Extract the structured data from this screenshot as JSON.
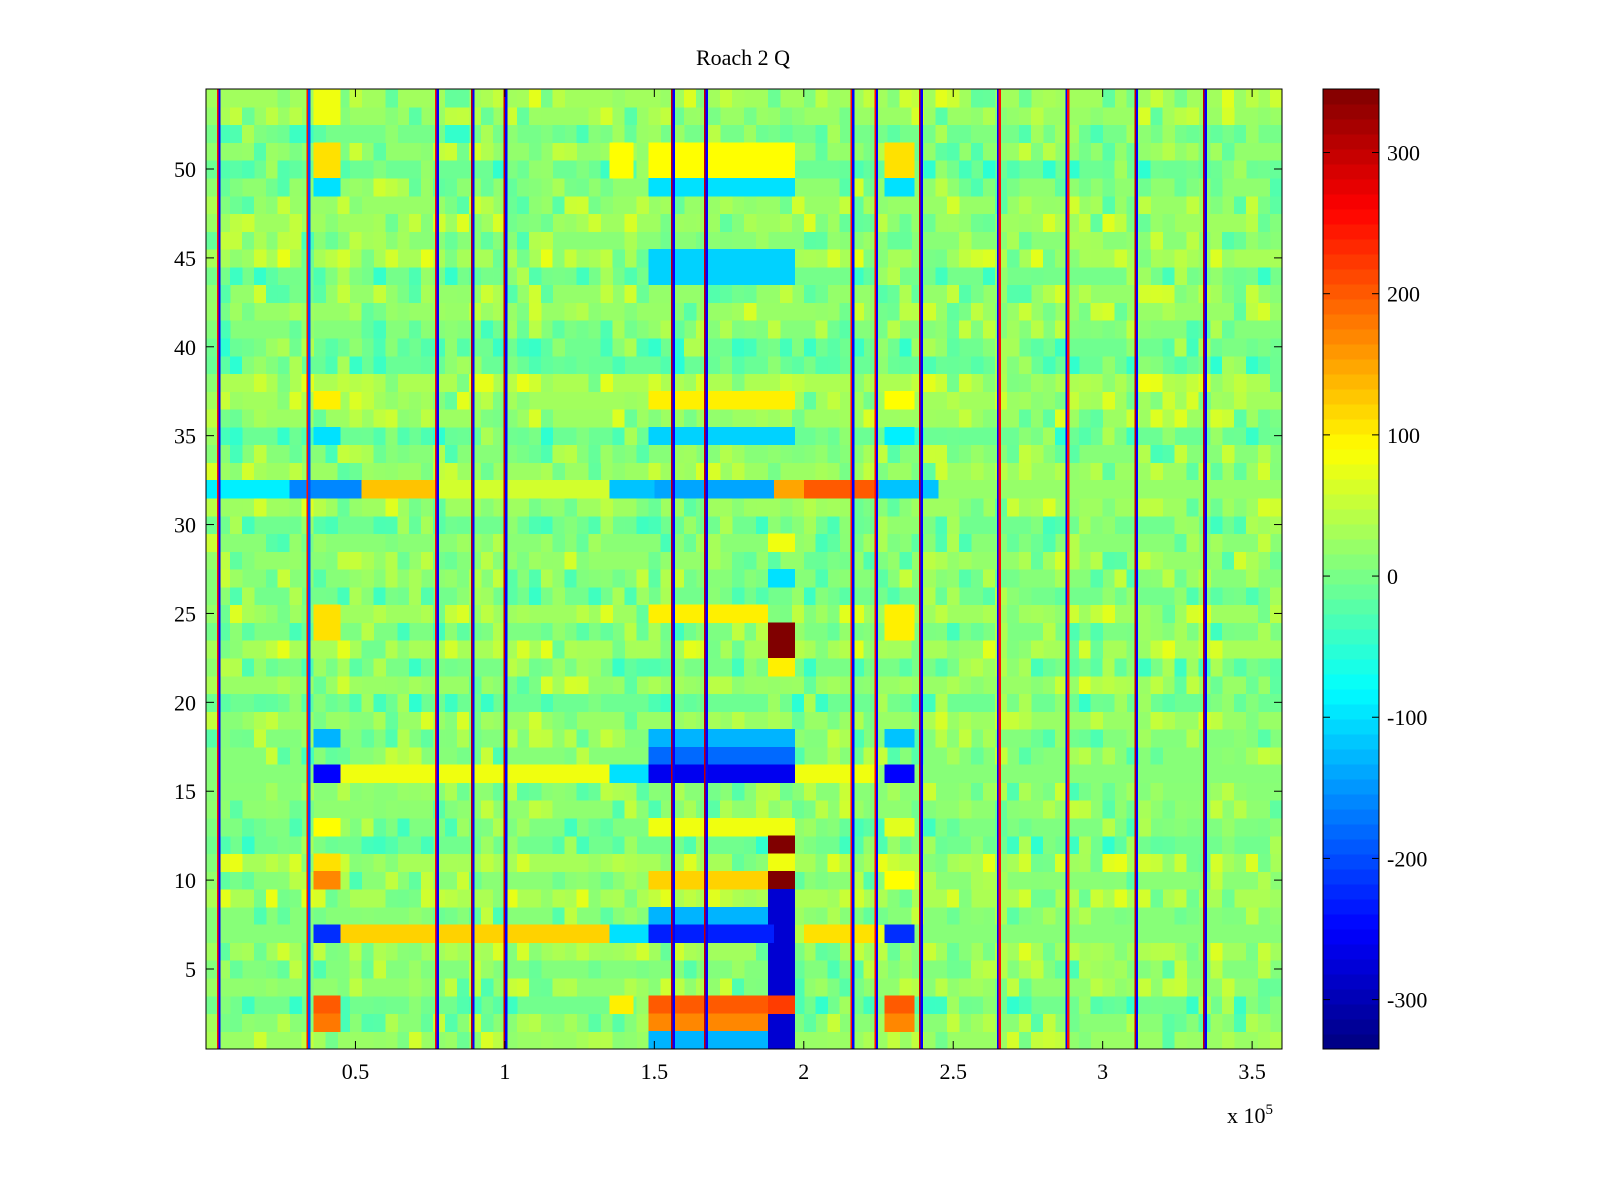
{
  "chart_data": {
    "type": "heatmap",
    "title": "Roach 2 Q",
    "xlabel": "",
    "ylabel": "",
    "x_exponent_label": "x 10",
    "x_exponent": "5",
    "xlim": [
      0,
      3.6
    ],
    "ylim": [
      0.5,
      54.5
    ],
    "x_ticks": [
      0.5,
      1,
      1.5,
      2,
      2.5,
      3,
      3.5
    ],
    "x_tick_labels": [
      "0.5",
      "1",
      "1.5",
      "2",
      "2.5",
      "3",
      "3.5"
    ],
    "y_ticks": [
      5,
      10,
      15,
      20,
      25,
      30,
      35,
      40,
      45,
      50
    ],
    "y_tick_labels": [
      "5",
      "10",
      "15",
      "20",
      "25",
      "30",
      "35",
      "40",
      "45",
      "50"
    ],
    "rows": 54,
    "color_range": [
      -335,
      345
    ],
    "colorbar_ticks": [
      300,
      200,
      100,
      0,
      -100,
      -200,
      -300
    ],
    "colorbar_tick_labels": [
      "300",
      "200",
      "100",
      "0",
      "-100",
      "-200",
      "-300"
    ],
    "colormap": "jet",
    "background_value": 15,
    "vertical_stripes": [
      {
        "x": 0.04,
        "value": 250
      },
      {
        "x": 0.045,
        "value": -250
      },
      {
        "x": 0.34,
        "value": 250
      },
      {
        "x": 0.345,
        "value": -200
      },
      {
        "x": 0.77,
        "value": 250
      },
      {
        "x": 0.775,
        "value": -250
      },
      {
        "x": 0.89,
        "value": 300
      },
      {
        "x": 0.895,
        "value": -250
      },
      {
        "x": 1.0,
        "value": 300
      },
      {
        "x": 1.005,
        "value": -250
      },
      {
        "x": 1.56,
        "value": 300
      },
      {
        "x": 1.565,
        "value": -250
      },
      {
        "x": 1.67,
        "value": 300
      },
      {
        "x": 1.675,
        "value": -250
      },
      {
        "x": 2.16,
        "value": 250
      },
      {
        "x": 2.165,
        "value": -250
      },
      {
        "x": 2.24,
        "value": 250
      },
      {
        "x": 2.245,
        "value": -250
      },
      {
        "x": 2.39,
        "value": 300
      },
      {
        "x": 2.395,
        "value": -250
      },
      {
        "x": 2.65,
        "value": -250
      },
      {
        "x": 2.655,
        "value": 250
      },
      {
        "x": 2.88,
        "value": -250
      },
      {
        "x": 2.885,
        "value": 250
      },
      {
        "x": 3.11,
        "value": 300
      },
      {
        "x": 3.115,
        "value": -250
      },
      {
        "x": 3.34,
        "value": 300
      },
      {
        "x": 3.345,
        "value": -250
      }
    ],
    "horizontal_bands": [
      {
        "row": 32,
        "segments": [
          {
            "x0": 0.0,
            "x1": 0.28,
            "value": -90
          },
          {
            "x0": 0.28,
            "x1": 0.52,
            "value": -160
          },
          {
            "x0": 0.52,
            "x1": 0.77,
            "value": 130
          },
          {
            "x0": 0.77,
            "x1": 1.35,
            "value": 60
          },
          {
            "x0": 1.35,
            "x1": 1.5,
            "value": -120
          },
          {
            "x0": 1.5,
            "x1": 1.9,
            "value": -140
          },
          {
            "x0": 1.9,
            "x1": 2.0,
            "value": 150
          },
          {
            "x0": 2.0,
            "x1": 2.25,
            "value": 200
          },
          {
            "x0": 2.25,
            "x1": 2.45,
            "value": -120
          },
          {
            "x0": 2.45,
            "x1": 3.6,
            "value": 20
          }
        ]
      },
      {
        "row": 16,
        "segments": [
          {
            "x0": 0.0,
            "x1": 0.36,
            "value": 10
          },
          {
            "x0": 0.36,
            "x1": 0.45,
            "value": -250
          },
          {
            "x0": 0.45,
            "x1": 1.35,
            "value": 80
          },
          {
            "x0": 1.35,
            "x1": 1.48,
            "value": -100
          },
          {
            "x0": 1.48,
            "x1": 1.97,
            "value": -260
          },
          {
            "x0": 1.97,
            "x1": 2.25,
            "value": 80
          },
          {
            "x0": 2.27,
            "x1": 2.37,
            "value": -250
          },
          {
            "x0": 2.37,
            "x1": 3.6,
            "value": 10
          }
        ]
      },
      {
        "row": 7,
        "segments": [
          {
            "x0": 0.0,
            "x1": 0.36,
            "value": 10
          },
          {
            "x0": 0.36,
            "x1": 0.45,
            "value": -220
          },
          {
            "x0": 0.45,
            "x1": 1.35,
            "value": 120
          },
          {
            "x0": 1.35,
            "x1": 1.48,
            "value": -100
          },
          {
            "x0": 1.48,
            "x1": 1.9,
            "value": -230
          },
          {
            "x0": 2.0,
            "x1": 2.25,
            "value": 110
          },
          {
            "x0": 2.27,
            "x1": 2.37,
            "value": -220
          },
          {
            "x0": 2.37,
            "x1": 3.6,
            "value": 10
          }
        ]
      }
    ],
    "blocks": [
      {
        "x0": 0.36,
        "x1": 0.45,
        "rows": [
          53,
          54
        ],
        "value": 80
      },
      {
        "x0": 0.36,
        "x1": 0.45,
        "rows": [
          50,
          51
        ],
        "value": 110
      },
      {
        "x0": 0.36,
        "x1": 0.45,
        "rows": [
          49
        ],
        "value": -100
      },
      {
        "x0": 0.36,
        "x1": 0.45,
        "rows": [
          37
        ],
        "value": 100
      },
      {
        "x0": 0.36,
        "x1": 0.45,
        "rows": [
          35
        ],
        "value": -100
      },
      {
        "x0": 0.36,
        "x1": 0.45,
        "rows": [
          24,
          25
        ],
        "value": 110
      },
      {
        "x0": 0.36,
        "x1": 0.45,
        "rows": [
          18
        ],
        "value": -130
      },
      {
        "x0": 0.36,
        "x1": 0.45,
        "rows": [
          13
        ],
        "value": 90
      },
      {
        "x0": 0.36,
        "x1": 0.45,
        "rows": [
          11
        ],
        "value": 110
      },
      {
        "x0": 0.36,
        "x1": 0.45,
        "rows": [
          10
        ],
        "value": 170
      },
      {
        "x0": 0.36,
        "x1": 0.45,
        "rows": [
          3
        ],
        "value": 200
      },
      {
        "x0": 0.36,
        "x1": 0.45,
        "rows": [
          2
        ],
        "value": 180
      },
      {
        "x0": 1.35,
        "x1": 1.43,
        "rows": [
          50,
          51
        ],
        "value": 90
      },
      {
        "x0": 1.48,
        "x1": 1.97,
        "rows": [
          50,
          51
        ],
        "value": 90
      },
      {
        "x0": 1.48,
        "x1": 1.97,
        "rows": [
          49
        ],
        "value": -100
      },
      {
        "x0": 1.48,
        "x1": 1.97,
        "rows": [
          44,
          45
        ],
        "value": -110
      },
      {
        "x0": 1.48,
        "x1": 1.97,
        "rows": [
          37
        ],
        "value": 100
      },
      {
        "x0": 1.48,
        "x1": 1.97,
        "rows": [
          35
        ],
        "value": -110
      },
      {
        "x0": 1.48,
        "x1": 1.88,
        "rows": [
          25
        ],
        "value": 100
      },
      {
        "x0": 1.48,
        "x1": 1.97,
        "rows": [
          18
        ],
        "value": -130
      },
      {
        "x0": 1.48,
        "x1": 1.97,
        "rows": [
          17
        ],
        "value": -180
      },
      {
        "x0": 1.48,
        "x1": 1.97,
        "rows": [
          13
        ],
        "value": 80
      },
      {
        "x0": 1.48,
        "x1": 1.88,
        "rows": [
          10
        ],
        "value": 120
      },
      {
        "x0": 1.48,
        "x1": 1.88,
        "rows": [
          8
        ],
        "value": -130
      },
      {
        "x0": 1.48,
        "x1": 1.88,
        "rows": [
          3
        ],
        "value": 200
      },
      {
        "x0": 1.48,
        "x1": 1.88,
        "rows": [
          2
        ],
        "value": 170
      },
      {
        "x0": 1.48,
        "x1": 1.88,
        "rows": [
          1
        ],
        "value": -130
      },
      {
        "x0": 1.35,
        "x1": 1.43,
        "rows": [
          3
        ],
        "value": 100
      },
      {
        "x0": 1.88,
        "x1": 1.97,
        "rows": [
          23,
          24
        ],
        "value": 345
      },
      {
        "x0": 1.88,
        "x1": 1.97,
        "rows": [
          22
        ],
        "value": 100
      },
      {
        "x0": 1.88,
        "x1": 1.97,
        "rows": [
          12
        ],
        "value": 345
      },
      {
        "x0": 1.88,
        "x1": 1.97,
        "rows": [
          11
        ],
        "value": 80
      },
      {
        "x0": 1.88,
        "x1": 1.97,
        "rows": [
          10
        ],
        "value": 345
      },
      {
        "x0": 1.88,
        "x1": 1.97,
        "rows": [
          4,
          5,
          6,
          7,
          8,
          9
        ],
        "value": -280
      },
      {
        "x0": 1.88,
        "x1": 1.97,
        "rows": [
          1,
          2
        ],
        "value": -280
      },
      {
        "x0": 1.88,
        "x1": 1.97,
        "rows": [
          3
        ],
        "value": 220
      },
      {
        "x0": 1.88,
        "x1": 1.97,
        "rows": [
          29
        ],
        "value": 80
      },
      {
        "x0": 1.88,
        "x1": 1.97,
        "rows": [
          27
        ],
        "value": -100
      },
      {
        "x0": 2.27,
        "x1": 2.37,
        "rows": [
          50,
          51
        ],
        "value": 110
      },
      {
        "x0": 2.27,
        "x1": 2.37,
        "rows": [
          49
        ],
        "value": -100
      },
      {
        "x0": 2.27,
        "x1": 2.37,
        "rows": [
          37
        ],
        "value": 90
      },
      {
        "x0": 2.27,
        "x1": 2.37,
        "rows": [
          35
        ],
        "value": -90
      },
      {
        "x0": 2.27,
        "x1": 2.37,
        "rows": [
          24,
          25
        ],
        "value": 100
      },
      {
        "x0": 2.27,
        "x1": 2.37,
        "rows": [
          18
        ],
        "value": -120
      },
      {
        "x0": 2.27,
        "x1": 2.37,
        "rows": [
          13
        ],
        "value": 70
      },
      {
        "x0": 2.27,
        "x1": 2.37,
        "rows": [
          10
        ],
        "value": 90
      },
      {
        "x0": 2.27,
        "x1": 2.37,
        "rows": [
          3
        ],
        "value": 200
      },
      {
        "x0": 2.27,
        "x1": 2.37,
        "rows": [
          2
        ],
        "value": 170
      }
    ]
  }
}
